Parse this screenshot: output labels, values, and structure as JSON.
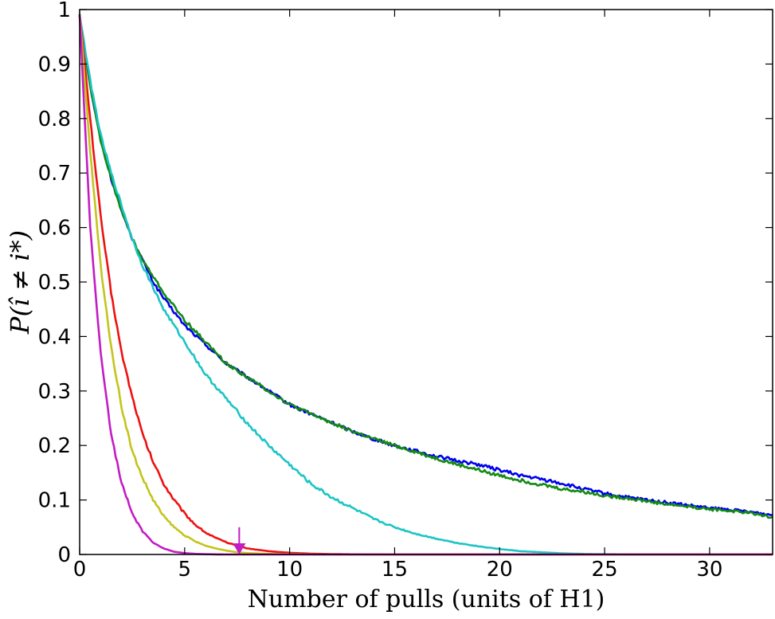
{
  "chart_data": {
    "type": "line",
    "title": "",
    "xlabel": "Number of pulls (units of H1)",
    "ylabel": "P(î ≠ i*)",
    "xlim": [
      0,
      33
    ],
    "ylim": [
      0,
      1
    ],
    "xticks": [
      0,
      5,
      10,
      15,
      20,
      25,
      30
    ],
    "yticks": [
      0,
      0.1,
      0.2,
      0.3,
      0.4,
      0.5,
      0.6,
      0.7,
      0.8,
      0.9,
      1
    ],
    "grid": false,
    "legend": "none",
    "series": [
      {
        "color": "#0000ee",
        "x": [
          0,
          0.5,
          1,
          1.5,
          2,
          2.5,
          3,
          3.5,
          4,
          5,
          6,
          7,
          8,
          9,
          10,
          11,
          12,
          13,
          14,
          15,
          16,
          17,
          18,
          19,
          20,
          21,
          22,
          23,
          24,
          25,
          26,
          27,
          28,
          29,
          30,
          31,
          32,
          33
        ],
        "y": [
          0.99,
          0.86,
          0.76,
          0.69,
          0.63,
          0.58,
          0.54,
          0.5,
          0.47,
          0.42,
          0.385,
          0.35,
          0.325,
          0.3,
          0.275,
          0.258,
          0.242,
          0.226,
          0.212,
          0.2,
          0.19,
          0.18,
          0.172,
          0.165,
          0.155,
          0.145,
          0.138,
          0.13,
          0.12,
          0.112,
          0.105,
          0.1,
          0.095,
          0.09,
          0.085,
          0.082,
          0.078,
          0.072
        ]
      },
      {
        "color": "#138a13",
        "x": [
          0,
          0.5,
          1,
          1.5,
          2,
          2.5,
          3,
          3.5,
          4,
          5,
          6,
          7,
          8,
          9,
          10,
          11,
          12,
          13,
          14,
          15,
          16,
          17,
          18,
          19,
          20,
          21,
          22,
          23,
          24,
          25,
          26,
          27,
          28,
          29,
          30,
          31,
          32,
          33
        ],
        "y": [
          0.99,
          0.86,
          0.76,
          0.69,
          0.63,
          0.58,
          0.54,
          0.51,
          0.48,
          0.43,
          0.39,
          0.35,
          0.325,
          0.3,
          0.275,
          0.258,
          0.242,
          0.226,
          0.212,
          0.2,
          0.188,
          0.176,
          0.165,
          0.155,
          0.145,
          0.136,
          0.128,
          0.12,
          0.115,
          0.108,
          0.104,
          0.098,
          0.092,
          0.088,
          0.083,
          0.08,
          0.076,
          0.068
        ]
      },
      {
        "color": "#1cc4c4",
        "x": [
          0,
          0.5,
          1,
          1.5,
          2,
          2.5,
          3,
          3.5,
          4,
          5,
          6,
          7,
          8,
          9,
          10,
          11,
          12,
          13,
          14,
          15,
          16,
          17,
          18,
          19,
          20,
          21,
          22,
          23,
          24,
          25,
          27,
          30,
          33
        ],
        "y": [
          0.99,
          0.87,
          0.77,
          0.7,
          0.64,
          0.58,
          0.53,
          0.49,
          0.45,
          0.39,
          0.33,
          0.285,
          0.24,
          0.2,
          0.165,
          0.13,
          0.105,
          0.085,
          0.065,
          0.05,
          0.038,
          0.029,
          0.021,
          0.015,
          0.01,
          0.006,
          0.004,
          0.002,
          0.001,
          0.0005,
          0,
          0,
          0
        ]
      },
      {
        "color": "#ee1111",
        "x": [
          0,
          0.5,
          1,
          1.5,
          2,
          2.5,
          3,
          3.5,
          4,
          4.5,
          5,
          5.5,
          6,
          6.5,
          7,
          7.5,
          8,
          9,
          10,
          11,
          12,
          13,
          15,
          20,
          25,
          30,
          33
        ],
        "y": [
          0.99,
          0.8,
          0.62,
          0.48,
          0.37,
          0.29,
          0.22,
          0.17,
          0.13,
          0.1,
          0.075,
          0.055,
          0.04,
          0.03,
          0.022,
          0.016,
          0.011,
          0.006,
          0.003,
          0.0015,
          0.0007,
          0.0003,
          0,
          0,
          0,
          0,
          0
        ]
      },
      {
        "color": "#c4c41c",
        "x": [
          0,
          0.5,
          1,
          1.5,
          2,
          2.5,
          3,
          3.5,
          4,
          4.5,
          5,
          5.5,
          6,
          6.5,
          7,
          7.5,
          8,
          9,
          10,
          12,
          15,
          20,
          25,
          30,
          33
        ],
        "y": [
          0.99,
          0.74,
          0.53,
          0.38,
          0.27,
          0.19,
          0.14,
          0.1,
          0.07,
          0.05,
          0.035,
          0.024,
          0.016,
          0.011,
          0.007,
          0.004,
          0.0025,
          0.001,
          0.0005,
          0,
          0,
          0,
          0,
          0,
          0
        ]
      },
      {
        "color": "#c41cc4",
        "x": [
          0,
          0.5,
          1,
          1.5,
          2,
          2.5,
          3,
          3.5,
          4,
          4.5,
          5,
          5.5,
          6,
          6.5,
          7,
          8,
          10,
          15,
          20,
          25,
          30,
          33
        ],
        "y": [
          0.99,
          0.6,
          0.37,
          0.22,
          0.13,
          0.075,
          0.042,
          0.022,
          0.011,
          0.005,
          0.0025,
          0.0012,
          0.0005,
          0.0002,
          0,
          0,
          0,
          0,
          0,
          0,
          0,
          0
        ]
      }
    ],
    "annotations": [
      {
        "type": "arrow",
        "x": 7.6,
        "y_from": 0.05,
        "y_to": 0.0,
        "color": "#c41cc4"
      }
    ]
  }
}
